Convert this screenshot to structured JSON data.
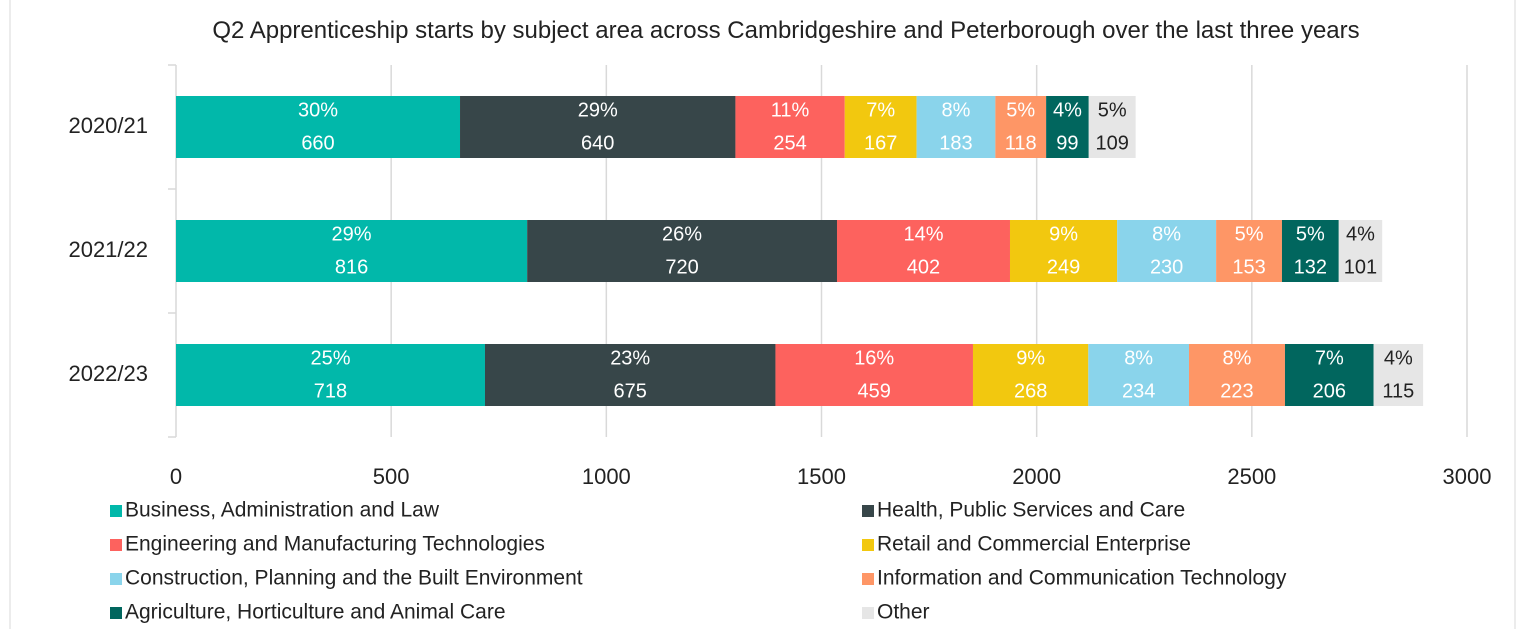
{
  "chart_data": {
    "type": "stacked-bar-horizontal",
    "title": "Q2 Apprenticeship starts by subject area across Cambridgeshire and Peterborough over the last three years",
    "categories": [
      "2020/21",
      "2021/22",
      "2022/23"
    ],
    "xlim": [
      0,
      3000
    ],
    "xticks": [
      0,
      500,
      1000,
      1500,
      2000,
      2500,
      3000
    ],
    "grid": true,
    "legend": "bottom",
    "series": [
      {
        "name": "Business, Administration and Law",
        "color": "#01b8aa",
        "values": [
          660,
          816,
          718
        ],
        "percent_labels": [
          "30%",
          "29%",
          "25%"
        ]
      },
      {
        "name": "Health, Public Services and Care",
        "color": "#374649",
        "values": [
          640,
          720,
          675
        ],
        "percent_labels": [
          "29%",
          "26%",
          "23%"
        ]
      },
      {
        "name": "Engineering and Manufacturing Technologies",
        "color": "#fd625e",
        "values": [
          254,
          402,
          459
        ],
        "percent_labels": [
          "11%",
          "14%",
          "16%"
        ]
      },
      {
        "name": "Retail and Commercial Enterprise",
        "color": "#f2c80f",
        "values": [
          167,
          249,
          268
        ],
        "percent_labels": [
          "7%",
          "9%",
          "9%"
        ]
      },
      {
        "name": "Construction, Planning and the Built Environment",
        "color": "#8ad4eb",
        "values": [
          183,
          230,
          234
        ],
        "percent_labels": [
          "8%",
          "8%",
          "8%"
        ]
      },
      {
        "name": "Information and Communication Technology",
        "color": "#fe9666",
        "values": [
          118,
          153,
          223
        ],
        "percent_labels": [
          "5%",
          "5%",
          "8%"
        ]
      },
      {
        "name": "Agriculture, Horticulture and Animal Care",
        "color": "#01665e",
        "values": [
          99,
          132,
          206
        ],
        "percent_labels": [
          "4%",
          "5%",
          "7%"
        ]
      },
      {
        "name": "Other",
        "color": "#e6e6e6",
        "values": [
          109,
          101,
          115
        ],
        "percent_labels": [
          "5%",
          "4%",
          "4%"
        ]
      }
    ]
  }
}
